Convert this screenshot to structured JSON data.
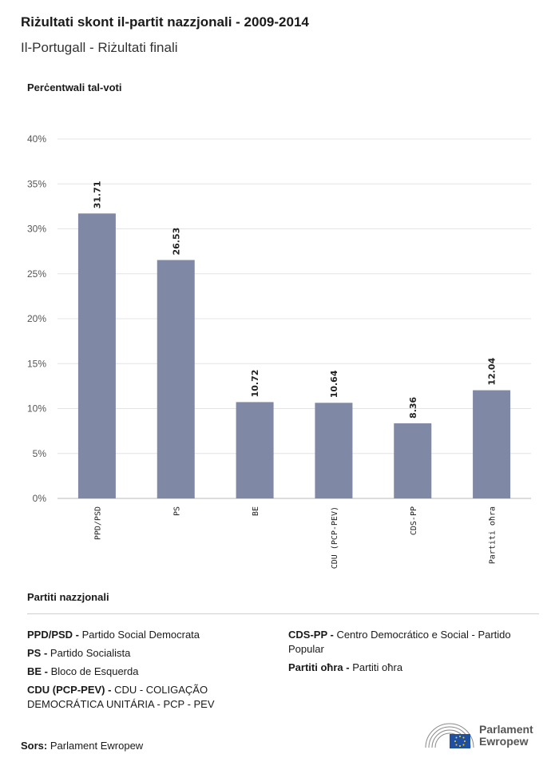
{
  "header": {
    "title": "Riżultati skont il-partit nazzjonali - 2009-2014",
    "subtitle": "Il-Portugall - Riżultati finali"
  },
  "chart_data": {
    "type": "bar",
    "ylabel": "Perċentwali tal-voti",
    "categories": [
      "PPD/PSD",
      "PS",
      "BE",
      "CDU (PCP-PEV)",
      "CDS-PP",
      "Partiti oħra"
    ],
    "values": [
      31.71,
      26.53,
      10.72,
      10.64,
      8.36,
      12.04
    ],
    "value_labels": [
      "31.71",
      "26.53",
      "10.72",
      "10.64",
      "8.36",
      "12.04"
    ],
    "ylim": [
      0,
      40
    ],
    "yticks": [
      "0%",
      "5%",
      "10%",
      "15%",
      "20%",
      "25%",
      "30%",
      "35%",
      "40%"
    ],
    "bar_color": "#7f89a5",
    "grid": true
  },
  "legend": {
    "title": "Partiti nazzjonali",
    "col1": [
      {
        "abbr": "PPD/PSD -",
        "name": "Partido Social Democrata"
      },
      {
        "abbr": "PS -",
        "name": "Partido Socialista"
      },
      {
        "abbr": "BE -",
        "name": "Bloco de Esquerda"
      },
      {
        "abbr": "CDU (PCP-PEV) -",
        "name": "CDU - COLIGAÇÃO DEMOCRÁTICA UNITÁRIA - PCP - PEV"
      }
    ],
    "col2": [
      {
        "abbr": "CDS-PP -",
        "name": "Centro Democrático e Social - Partido Popular"
      },
      {
        "abbr": "Partiti oħra -",
        "name": "Partiti oħra"
      }
    ]
  },
  "footer": {
    "source_label": "Sors:",
    "source_value": "Parlament Ewropew",
    "logo_line1": "Parlament",
    "logo_line2": "Ewropew"
  }
}
